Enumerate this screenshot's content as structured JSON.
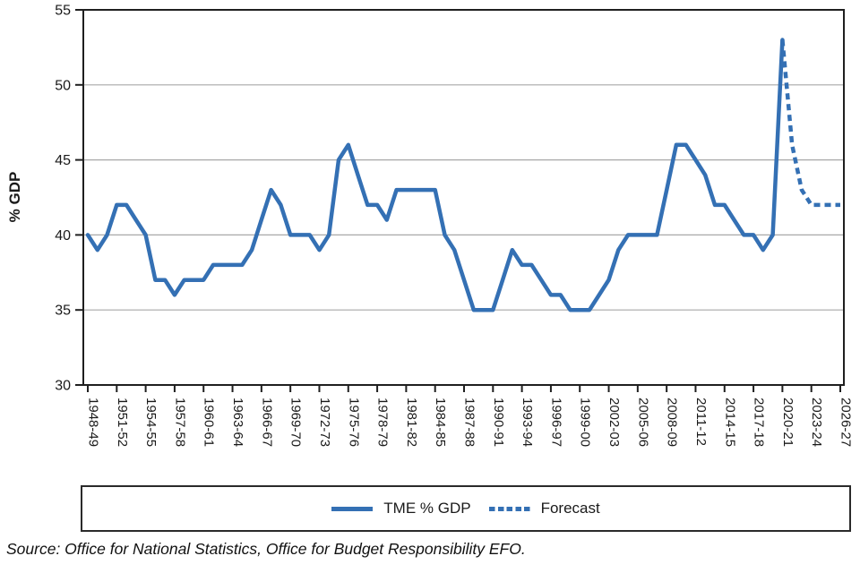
{
  "chart_data": {
    "type": "line",
    "title": "",
    "xlabel": "",
    "ylabel": "% GDP",
    "ylim": [
      30,
      55
    ],
    "yticks": [
      30,
      35,
      40,
      45,
      50,
      55
    ],
    "gridlines": [
      35,
      40,
      45,
      50
    ],
    "x_tick_label_every": 3,
    "legend_position": "bottom-box",
    "categories": [
      "1948-49",
      "1949-50",
      "1950-51",
      "1951-52",
      "1952-53",
      "1953-54",
      "1954-55",
      "1955-56",
      "1956-57",
      "1957-58",
      "1958-59",
      "1959-60",
      "1960-61",
      "1961-62",
      "1962-63",
      "1963-64",
      "1964-65",
      "1965-66",
      "1966-67",
      "1967-68",
      "1968-69",
      "1969-70",
      "1970-71",
      "1971-72",
      "1972-73",
      "1973-74",
      "1974-75",
      "1975-76",
      "1976-77",
      "1977-78",
      "1978-79",
      "1979-80",
      "1980-81",
      "1981-82",
      "1982-83",
      "1983-84",
      "1984-85",
      "1985-86",
      "1986-87",
      "1987-88",
      "1988-89",
      "1989-90",
      "1990-91",
      "1991-92",
      "1992-93",
      "1993-94",
      "1994-95",
      "1995-96",
      "1996-97",
      "1997-98",
      "1998-99",
      "1999-00",
      "2000-01",
      "2001-02",
      "2002-03",
      "2003-04",
      "2004-05",
      "2005-06",
      "2006-07",
      "2007-08",
      "2008-09",
      "2009-10",
      "2010-11",
      "2011-12",
      "2012-13",
      "2013-14",
      "2014-15",
      "2015-16",
      "2016-17",
      "2017-18",
      "2018-19",
      "2019-20",
      "2020-21",
      "2021-22",
      "2022-23",
      "2023-24",
      "2024-25",
      "2025-26",
      "2026-27"
    ],
    "values": [
      40,
      39,
      40,
      42,
      42,
      41,
      40,
      37,
      37,
      36,
      37,
      37,
      37,
      38,
      38,
      38,
      38,
      39,
      41,
      43,
      42,
      40,
      40,
      40,
      39,
      40,
      45,
      46,
      44,
      42,
      42,
      41,
      43,
      43,
      43,
      43,
      43,
      40,
      39,
      37,
      35,
      35,
      35,
      37,
      39,
      38,
      38,
      37,
      36,
      36,
      35,
      35,
      35,
      36,
      37,
      39,
      40,
      40,
      40,
      40,
      43,
      46,
      46,
      45,
      44,
      42,
      42,
      41,
      40,
      40,
      39,
      40,
      53,
      46,
      43,
      42,
      42,
      42,
      42
    ],
    "forecast_start_index": 72,
    "series": [
      {
        "name": "TME % GDP",
        "style": "solid"
      },
      {
        "name": "Forecast",
        "style": "dashed"
      }
    ]
  },
  "legend": {
    "solid_label": "TME % GDP",
    "dashed_label": "Forecast"
  },
  "source": {
    "text": "Source: Office for National Statistics, Office for Budget Responsibility EFO."
  },
  "colors": {
    "line": "#3470b4",
    "grid": "#a8a8a8",
    "axis": "#1f1f1f",
    "text": "#1a1a1a",
    "background": "#ffffff"
  }
}
